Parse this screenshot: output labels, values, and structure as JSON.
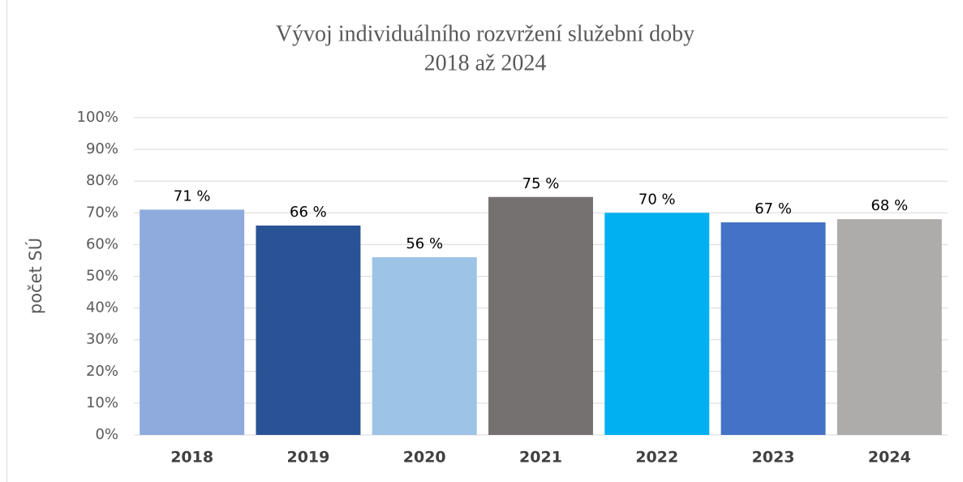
{
  "chart_data": {
    "type": "bar",
    "title": [
      "Vývoj individuálního rozvržení služební doby",
      "2018 až 2024"
    ],
    "ylabel": "počet SÚ",
    "categories": [
      "2018",
      "2019",
      "2020",
      "2021",
      "2022",
      "2023",
      "2024"
    ],
    "values": [
      71,
      66,
      56,
      75,
      70,
      67,
      68
    ],
    "value_labels": [
      "71 %",
      "66 %",
      "56 %",
      "75 %",
      "70 %",
      "67 %",
      "68 %"
    ],
    "colors": [
      "#8faadc",
      "#2a5396",
      "#9dc3e6",
      "#767171",
      "#00b0f0",
      "#4472c4",
      "#aeabab"
    ],
    "ylim": [
      0,
      100
    ],
    "yticks": [
      {
        "value": 0,
        "label": "0%"
      },
      {
        "value": 10,
        "label": "10%"
      },
      {
        "value": 20,
        "label": "20%"
      },
      {
        "value": 30,
        "label": "30%"
      },
      {
        "value": 40,
        "label": "40%"
      },
      {
        "value": 50,
        "label": "50%"
      },
      {
        "value": 60,
        "label": "60%"
      },
      {
        "value": 70,
        "label": "70%"
      },
      {
        "value": 80,
        "label": "80%"
      },
      {
        "value": 90,
        "label": "90%"
      },
      {
        "value": 100,
        "label": "100%"
      }
    ],
    "grid": true
  }
}
